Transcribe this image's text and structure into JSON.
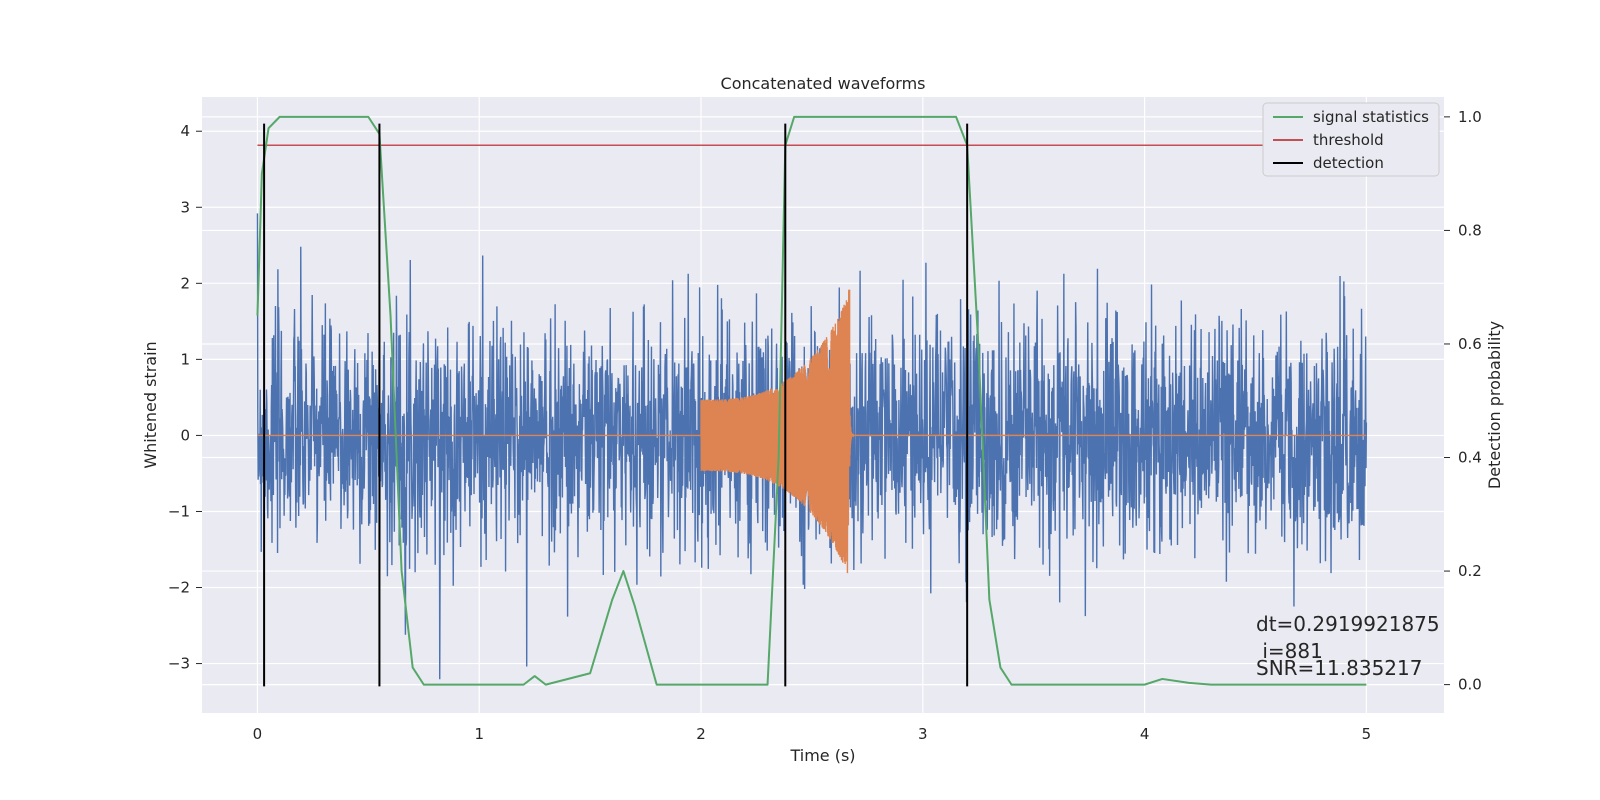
{
  "chart_data": {
    "type": "line",
    "title": "Concatenated waveforms",
    "xlabel": "Time (s)",
    "ylabel": "Whitened strain",
    "ylabel_right": "Detection probability",
    "xlim": [
      -0.25,
      5.35
    ],
    "ylim": [
      -3.65,
      4.45
    ],
    "ylim_right": [
      -0.05,
      1.035
    ],
    "xticks": [
      0,
      1,
      2,
      3,
      4,
      5
    ],
    "yticks": [
      -3,
      -2,
      -1,
      0,
      1,
      2,
      3,
      4
    ],
    "yticks_right": [
      0.0,
      0.2,
      0.4,
      0.6,
      0.8,
      1.0
    ],
    "xtick_labels": [
      "0",
      "1",
      "2",
      "3",
      "4",
      "5"
    ],
    "ytick_labels": [
      "−3",
      "−2",
      "−1",
      "0",
      "1",
      "2",
      "3",
      "4"
    ],
    "ytick_right_labels": [
      "0.0",
      "0.2",
      "0.4",
      "0.6",
      "0.8",
      "1.0"
    ],
    "grid": true,
    "legend_position": "top-right",
    "legend": [
      "signal statistics",
      "threshold",
      "detection"
    ],
    "colors": {
      "noise": "#4c72b0",
      "waveform": "#dd8452",
      "signal_statistics": "#55a868",
      "threshold": "#c44e52",
      "detection": "#000000",
      "background": "#eaeaf2",
      "grid": "#ffffff"
    },
    "series": [
      {
        "name": "strain",
        "axis": "left",
        "noise_std": 0.75,
        "x_range": [
          0,
          5
        ]
      },
      {
        "name": "waveform",
        "axis": "left",
        "x_range": [
          2.0,
          2.67
        ],
        "amp_start": 0.4,
        "amp_end": 1.7
      }
    ],
    "signal_statistics": {
      "axis": "right",
      "x": [
        0,
        0.02,
        0.05,
        0.1,
        0.5,
        0.55,
        0.6,
        0.65,
        0.7,
        0.75,
        1.2,
        1.25,
        1.3,
        1.5,
        1.6,
        1.65,
        1.7,
        1.8,
        2.3,
        2.35,
        2.38,
        2.42,
        3.15,
        3.2,
        3.25,
        3.3,
        3.35,
        3.4,
        4.0,
        4.08,
        4.2,
        4.3,
        5.0
      ],
      "y": [
        0.65,
        0.9,
        0.98,
        1.0,
        1.0,
        0.97,
        0.65,
        0.2,
        0.03,
        0.0,
        0.0,
        0.015,
        0.0,
        0.02,
        0.15,
        0.2,
        0.14,
        0.0,
        0.0,
        0.4,
        0.95,
        1.0,
        1.0,
        0.95,
        0.6,
        0.15,
        0.03,
        0.0,
        0.0,
        0.01,
        0.003,
        0.0,
        0.0
      ]
    },
    "threshold": {
      "axis": "right",
      "value": 0.95,
      "x_range": [
        0,
        5.1
      ]
    },
    "detections": [
      0.03,
      0.55,
      2.38,
      3.2
    ],
    "detection_y_range": [
      -3.3,
      4.1
    ],
    "annotations": [
      "dt=0.2919921875",
      " i=881",
      "SNR=11.835217"
    ]
  }
}
